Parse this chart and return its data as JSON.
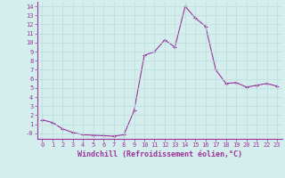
{
  "x": [
    0,
    1,
    2,
    3,
    4,
    5,
    6,
    7,
    8,
    9,
    10,
    11,
    12,
    13,
    14,
    15,
    16,
    17,
    18,
    19,
    20,
    21,
    22,
    23
  ],
  "y": [
    1.5,
    1.2,
    0.5,
    0.1,
    -0.15,
    -0.2,
    -0.25,
    -0.3,
    -0.15,
    2.5,
    8.6,
    9.0,
    10.3,
    9.5,
    14.0,
    12.7,
    11.8,
    7.0,
    5.5,
    5.6,
    5.1,
    5.3,
    5.5,
    5.2
  ],
  "line_color": "#993399",
  "marker": "+",
  "bg_color": "#d4eeee",
  "grid_color": "#bbdddd",
  "axis_color": "#993399",
  "xlabel": "Windchill (Refroidissement éolien,°C)",
  "xlim": [
    -0.5,
    23.5
  ],
  "ylim": [
    -0.6,
    14.5
  ],
  "ytick_vals": [
    0,
    1,
    2,
    3,
    4,
    5,
    6,
    7,
    8,
    9,
    10,
    11,
    12,
    13,
    14
  ],
  "ytick_labels": [
    "-0",
    "1",
    "2",
    "3",
    "4",
    "5",
    "6",
    "7",
    "8",
    "9",
    "10",
    "11",
    "12",
    "13",
    "14"
  ],
  "xticks": [
    0,
    1,
    2,
    3,
    4,
    5,
    6,
    7,
    8,
    9,
    10,
    11,
    12,
    13,
    14,
    15,
    16,
    17,
    18,
    19,
    20,
    21,
    22,
    23
  ],
  "tick_fontsize": 5.0,
  "xlabel_fontsize": 6.0
}
